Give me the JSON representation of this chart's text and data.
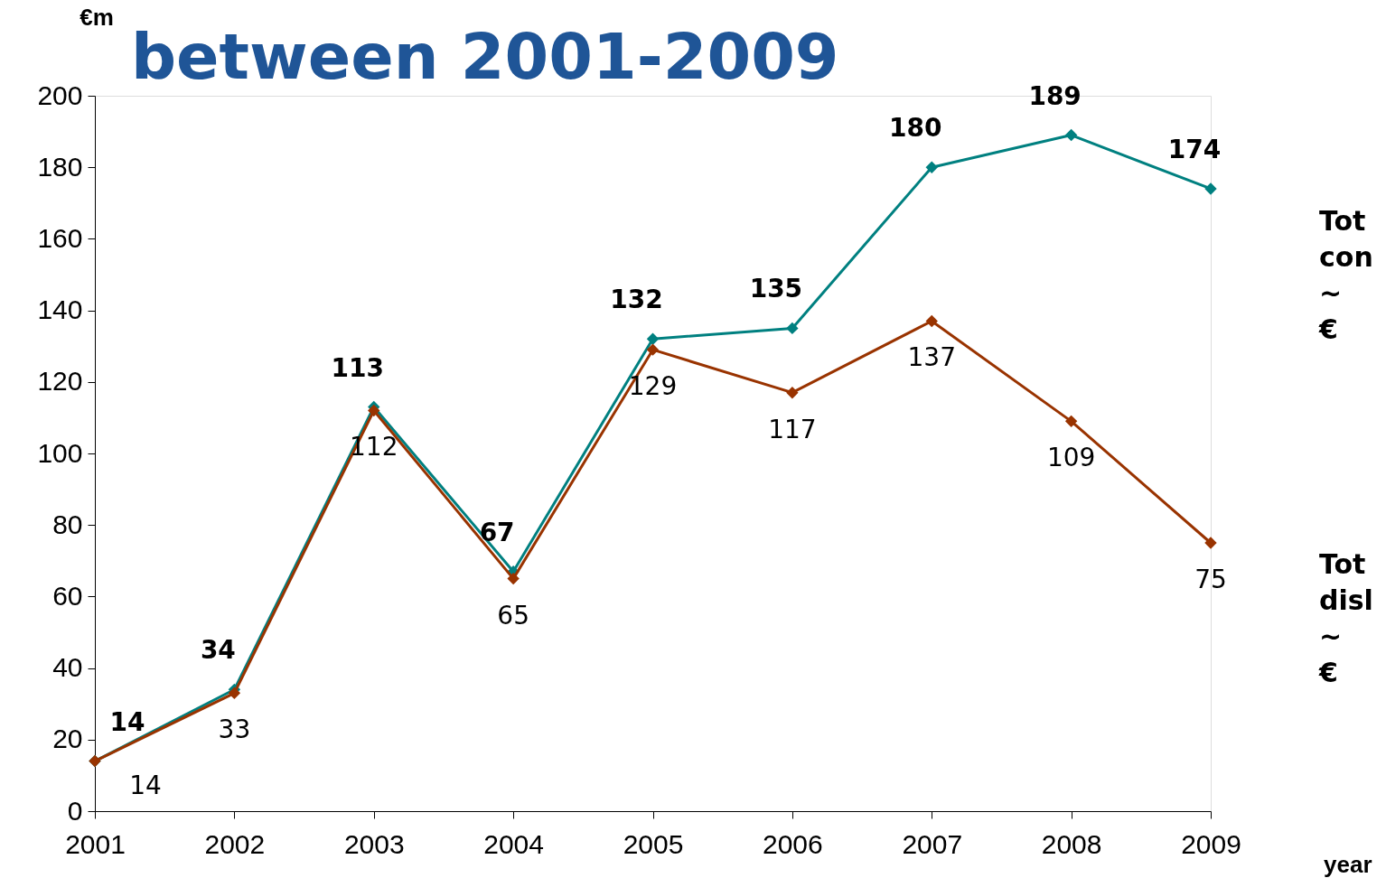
{
  "chart_data": {
    "type": "line",
    "title": "between 2001-2009",
    "ylabel": "€m",
    "xlabel": "year",
    "categories": [
      "2001",
      "2002",
      "2003",
      "2004",
      "2005",
      "2006",
      "2007",
      "2008",
      "2009"
    ],
    "series": [
      {
        "color": "#008080",
        "values": [
          14,
          34,
          113,
          67,
          132,
          135,
          180,
          189,
          174
        ]
      },
      {
        "color": "#993300",
        "values": [
          14,
          33,
          112,
          65,
          129,
          117,
          137,
          109,
          75
        ]
      }
    ],
    "ylim": [
      0,
      200
    ],
    "yticks": [
      0,
      20,
      40,
      60,
      80,
      100,
      120,
      140,
      160,
      180,
      200
    ],
    "data_labels": true,
    "marker": "diamond",
    "line_style": "solid",
    "grid": false,
    "annotations": [
      "Tot con ~ €",
      "Tot disl ~ €"
    ]
  }
}
